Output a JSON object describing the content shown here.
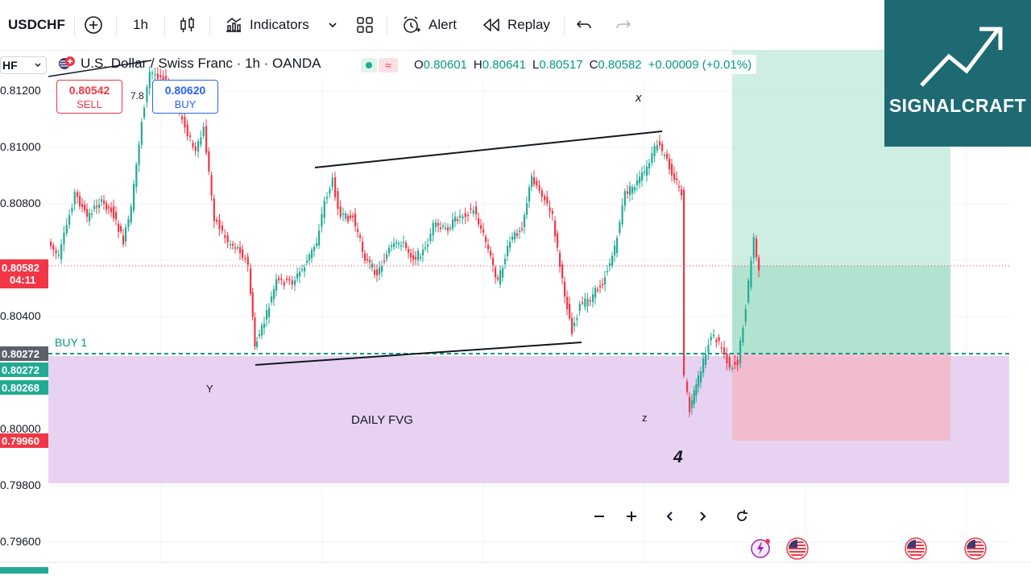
{
  "toolbar": {
    "symbol": "USDCHF",
    "timeframe": "1h",
    "indicators_label": "Indicators",
    "alert_label": "Alert",
    "replay_label": "Replay"
  },
  "legend": {
    "symbol_short": "HF",
    "title": "U.S. Dollar / Swiss Franc · 1h · OANDA",
    "open": "0.80601",
    "high": "0.80641",
    "low": "0.80517",
    "close": "0.80582",
    "change": "+0.00009 (+0.01%)",
    "o_key": "O",
    "h_key": "H",
    "l_key": "L",
    "c_key": "C",
    "wave_glyph": "≈"
  },
  "trade_buttons": {
    "sell_price": "0.80542",
    "sell_label": "SELL",
    "buy_price": "0.80620",
    "buy_label": "BUY",
    "spread": "7.8"
  },
  "price_axis": [
    {
      "label": "0.81200",
      "value": 0.812
    },
    {
      "label": "0.81000",
      "value": 0.81
    },
    {
      "label": "0.80800",
      "value": 0.808
    },
    {
      "label": "0.80400",
      "value": 0.804
    },
    {
      "label": "0.80000",
      "value": 0.8
    },
    {
      "label": "0.79800",
      "value": 0.798
    },
    {
      "label": "0.79600",
      "value": 0.796
    }
  ],
  "price_tags": [
    {
      "label": "0.80582",
      "sub": "04:11",
      "color": "#f23645",
      "value": 0.80582
    },
    {
      "label": "0.80272",
      "color": "#089981",
      "value": 0.80272,
      "style": "dark"
    },
    {
      "label": "0.80272",
      "color": "#22ab94",
      "value": 0.80272
    },
    {
      "label": "0.80268",
      "color": "#22ab94",
      "value": 0.80268
    },
    {
      "label": "0.79960",
      "color": "#f23645",
      "value": 0.7996
    }
  ],
  "annotations": {
    "buy_line_label": "BUY 1",
    "fvg_label": "DAILY FVG",
    "x_label": "x",
    "y_label": "Y",
    "z_label": "z",
    "wave_number": "4"
  },
  "colors": {
    "up": "#22ab94",
    "down": "#f23645",
    "fvg_zone": "#e6cdef",
    "target_zone": "#bfe8d9",
    "stop_zone": "#f2b9c8",
    "logo_bg": "#1e6a72"
  },
  "logo": {
    "text": "SIGNALCRAFT"
  }
}
